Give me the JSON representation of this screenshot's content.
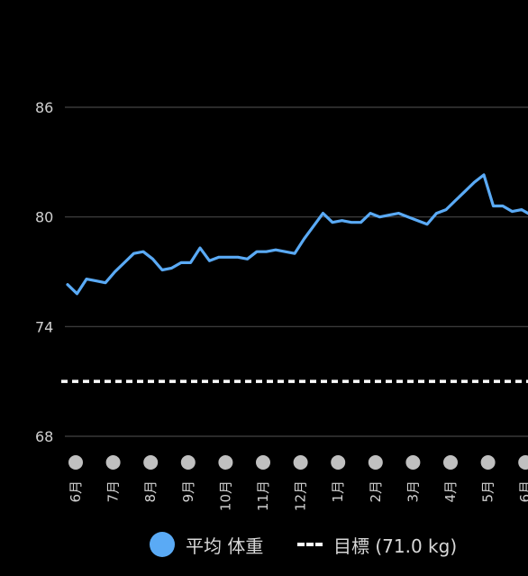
{
  "chart_data": {
    "type": "line",
    "title": "",
    "xlabel": "",
    "ylabel": "",
    "ylim": [
      68,
      86
    ],
    "y_ticks": [
      "86",
      "80",
      "74",
      "68"
    ],
    "y_tick_values": [
      86,
      80,
      74,
      68
    ],
    "grid": true,
    "legend_position": "bottom",
    "x_ticks": [
      "6月",
      "7月",
      "8月",
      "9月",
      "10月",
      "11月",
      "12月",
      "1月",
      "2月",
      "3月",
      "4月",
      "5月",
      "6月"
    ],
    "series": [
      {
        "name": "平均 体重",
        "color": "#5aaaf5",
        "values": [
          76.3,
          75.8,
          76.6,
          76.5,
          76.4,
          77.0,
          77.5,
          78.0,
          78.1,
          77.7,
          77.1,
          77.2,
          77.5,
          77.5,
          78.3,
          77.6,
          77.8,
          77.8,
          77.8,
          77.7,
          78.1,
          78.1,
          78.2,
          78.1,
          78.0,
          78.8,
          79.5,
          80.2,
          79.7,
          79.8,
          79.7,
          79.7,
          80.2,
          80.0,
          80.1,
          80.2,
          80.0,
          79.8,
          79.6,
          80.2,
          80.4,
          80.9,
          81.4,
          81.9,
          82.3,
          80.6,
          80.6,
          80.3,
          80.4,
          80.1
        ]
      },
      {
        "name": "目標 (71.0 kg)",
        "color": "#ffffff",
        "dashed": true,
        "values": [
          71.0
        ]
      }
    ]
  },
  "legend": {
    "series_label": "平均 体重",
    "target_label": "目標 (71.0 kg)"
  },
  "colors": {
    "background": "#000000",
    "grid": "#444444",
    "series": "#5aaaf5",
    "target": "#ffffff",
    "marker": "#c0c0c0",
    "text": "#d0d0d0"
  }
}
